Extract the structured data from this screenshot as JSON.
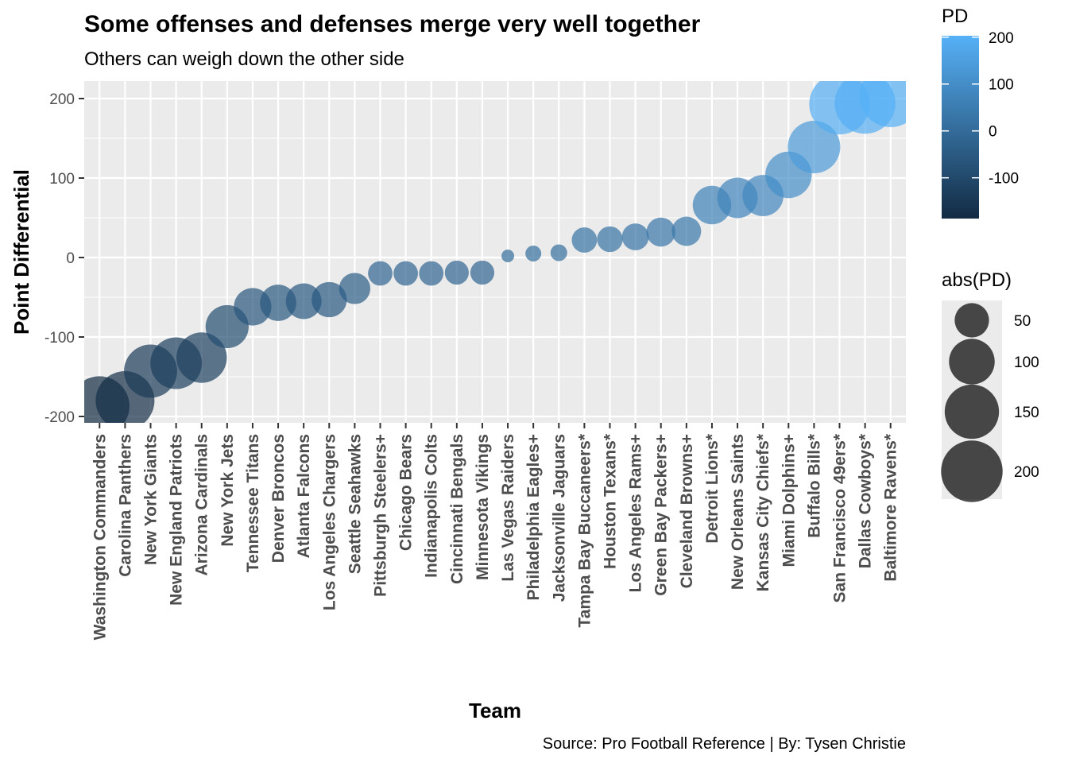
{
  "chart_data": {
    "type": "scatter",
    "title": "Some offenses and defenses merge very well together",
    "subtitle": "Others can weigh down the other side",
    "xlabel": "Team",
    "ylabel": "Point Differential",
    "caption": "Source: Pro Football Reference | By: Tysen Christie",
    "ylim": [
      -208,
      222
    ],
    "yticks": [
      -200,
      -100,
      0,
      100,
      200
    ],
    "ytick_labels": [
      "-200",
      "-100",
      "0",
      "100",
      "200"
    ],
    "grid": true,
    "categories": [
      "Washington Commanders",
      "Carolina Panthers",
      "New York Giants",
      "New England Patriots",
      "Arizona Cardinals",
      "New York Jets",
      "Tennessee Titans",
      "Denver Broncos",
      "Atlanta Falcons",
      "Los Angeles Chargers",
      "Seattle Seahawks",
      "Pittsburgh Steelers+",
      "Chicago Bears",
      "Indianapolis Colts",
      "Cincinnati Bengals",
      "Minnesota Vikings",
      "Las Vegas Raiders",
      "Philadelphia Eagles+",
      "Jacksonville Jaguars",
      "Tampa Bay Buccaneers*",
      "Houston Texans*",
      "Los Angeles Rams+",
      "Green Bay Packers+",
      "Cleveland Browns+",
      "Detroit Lions*",
      "New Orleans Saints",
      "Kansas City Chiefs*",
      "Miami Dolphins+",
      "Buffalo Bills*",
      "San Francisco 49ers*",
      "Dallas Cowboys*",
      "Baltimore Ravens*"
    ],
    "series": [
      {
        "values": [
          -187,
          -180,
          -143,
          -133,
          -126,
          -87,
          -62,
          -57,
          -55,
          -53,
          -39,
          -20,
          -20,
          -20,
          -19,
          -19,
          2,
          5,
          6,
          22,
          23,
          26,
          32,
          33,
          66,
          75,
          78,
          104,
          139,
          193,
          194,
          203
        ]
      }
    ],
    "color_legend": {
      "title": "PD",
      "ticks": [
        200,
        100,
        0,
        -100
      ],
      "tick_labels": [
        "200",
        "100",
        "0",
        "-100"
      ],
      "low_color": "#132b43",
      "high_color": "#56b1f7",
      "range": [
        -187,
        203
      ]
    },
    "size_legend": {
      "title": "abs(PD)",
      "values": [
        50,
        100,
        150,
        200
      ],
      "labels": [
        "50",
        "100",
        "150",
        "200"
      ],
      "range": [
        2,
        203
      ]
    },
    "point_alpha": 0.7,
    "panel_background": "#ebebeb",
    "grid_color": "#ffffff"
  }
}
